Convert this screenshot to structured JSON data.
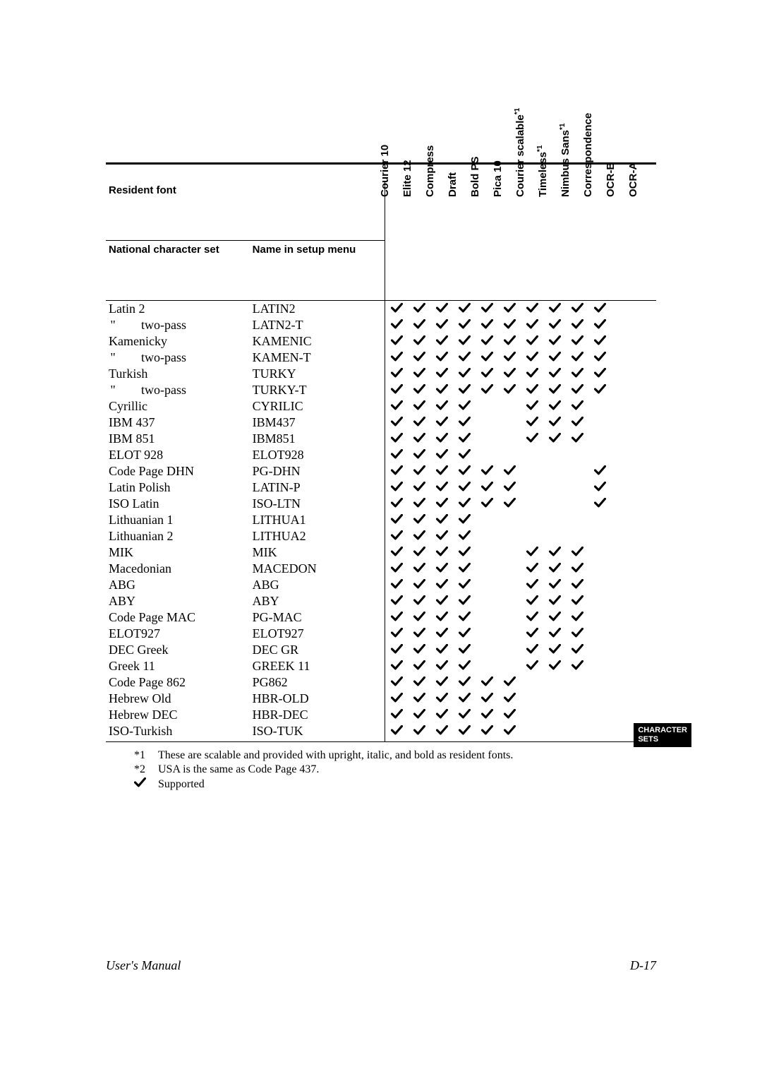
{
  "header": {
    "resident_font": "Resident font",
    "national_character_set": "National character set",
    "name_in_setup_menu": "Name in setup menu"
  },
  "columns": [
    {
      "label": "Courier 10",
      "note": ""
    },
    {
      "label": "Elite 12",
      "note": ""
    },
    {
      "label": "Compress",
      "note": ""
    },
    {
      "label": "Draft",
      "note": ""
    },
    {
      "label": "Bold PS",
      "note": ""
    },
    {
      "label": "Pica 10",
      "note": ""
    },
    {
      "label": "Courier scalable",
      "note": "*1"
    },
    {
      "label": "Timeless",
      "note": "*1"
    },
    {
      "label": "Nimbus Sans",
      "note": "*1"
    },
    {
      "label": "Correspondence",
      "note": ""
    },
    {
      "label": "OCR-B",
      "note": ""
    },
    {
      "label": "OCR-A",
      "note": ""
    }
  ],
  "rows": [
    {
      "charset": "Latin 2",
      "indent": false,
      "setup": "LATIN2",
      "marks": [
        1,
        1,
        1,
        1,
        1,
        1,
        1,
        1,
        1,
        1,
        0,
        0
      ]
    },
    {
      "charset": "two-pass",
      "indent": true,
      "setup": "LATN2-T",
      "marks": [
        1,
        1,
        1,
        1,
        1,
        1,
        1,
        1,
        1,
        1,
        0,
        0
      ]
    },
    {
      "charset": "Kamenicky",
      "indent": false,
      "setup": "KAMENIC",
      "marks": [
        1,
        1,
        1,
        1,
        1,
        1,
        1,
        1,
        1,
        1,
        0,
        0
      ]
    },
    {
      "charset": "two-pass",
      "indent": true,
      "setup": "KAMEN-T",
      "marks": [
        1,
        1,
        1,
        1,
        1,
        1,
        1,
        1,
        1,
        1,
        0,
        0
      ]
    },
    {
      "charset": "Turkish",
      "indent": false,
      "setup": "TURKY",
      "marks": [
        1,
        1,
        1,
        1,
        1,
        1,
        1,
        1,
        1,
        1,
        0,
        0
      ]
    },
    {
      "charset": "two-pass",
      "indent": true,
      "setup": "TURKY-T",
      "marks": [
        1,
        1,
        1,
        1,
        1,
        1,
        1,
        1,
        1,
        1,
        0,
        0
      ]
    },
    {
      "charset": "Cyrillic",
      "indent": false,
      "setup": "CYRILIC",
      "marks": [
        1,
        1,
        1,
        1,
        0,
        0,
        1,
        1,
        1,
        0,
        0,
        0
      ]
    },
    {
      "charset": "IBM 437",
      "indent": false,
      "setup": "IBM437",
      "marks": [
        1,
        1,
        1,
        1,
        0,
        0,
        1,
        1,
        1,
        0,
        0,
        0
      ]
    },
    {
      "charset": "IBM 851",
      "indent": false,
      "setup": "IBM851",
      "marks": [
        1,
        1,
        1,
        1,
        0,
        0,
        1,
        1,
        1,
        0,
        0,
        0
      ]
    },
    {
      "charset": "ELOT 928",
      "indent": false,
      "setup": "ELOT928",
      "marks": [
        1,
        1,
        1,
        1,
        0,
        0,
        0,
        0,
        0,
        0,
        0,
        0
      ]
    },
    {
      "charset": "Code Page DHN",
      "indent": false,
      "setup": "PG-DHN",
      "marks": [
        1,
        1,
        1,
        1,
        1,
        1,
        0,
        0,
        0,
        1,
        0,
        0
      ]
    },
    {
      "charset": "Latin Polish",
      "indent": false,
      "setup": "LATIN-P",
      "marks": [
        1,
        1,
        1,
        1,
        1,
        1,
        0,
        0,
        0,
        1,
        0,
        0
      ]
    },
    {
      "charset": "ISO Latin",
      "indent": false,
      "setup": "ISO-LTN",
      "marks": [
        1,
        1,
        1,
        1,
        1,
        1,
        0,
        0,
        0,
        1,
        0,
        0
      ]
    },
    {
      "charset": "Lithuanian 1",
      "indent": false,
      "setup": "LITHUA1",
      "marks": [
        1,
        1,
        1,
        1,
        0,
        0,
        0,
        0,
        0,
        0,
        0,
        0
      ]
    },
    {
      "charset": "Lithuanian 2",
      "indent": false,
      "setup": "LITHUA2",
      "marks": [
        1,
        1,
        1,
        1,
        0,
        0,
        0,
        0,
        0,
        0,
        0,
        0
      ]
    },
    {
      "charset": "MIK",
      "indent": false,
      "setup": "MIK",
      "marks": [
        1,
        1,
        1,
        1,
        0,
        0,
        1,
        1,
        1,
        0,
        0,
        0
      ]
    },
    {
      "charset": "Macedonian",
      "indent": false,
      "setup": "MACEDON",
      "marks": [
        1,
        1,
        1,
        1,
        0,
        0,
        1,
        1,
        1,
        0,
        0,
        0
      ]
    },
    {
      "charset": "ABG",
      "indent": false,
      "setup": "ABG",
      "marks": [
        1,
        1,
        1,
        1,
        0,
        0,
        1,
        1,
        1,
        0,
        0,
        0
      ]
    },
    {
      "charset": "ABY",
      "indent": false,
      "setup": "ABY",
      "marks": [
        1,
        1,
        1,
        1,
        0,
        0,
        1,
        1,
        1,
        0,
        0,
        0
      ]
    },
    {
      "charset": "Code Page MAC",
      "indent": false,
      "setup": "PG-MAC",
      "marks": [
        1,
        1,
        1,
        1,
        0,
        0,
        1,
        1,
        1,
        0,
        0,
        0
      ]
    },
    {
      "charset": "ELOT927",
      "indent": false,
      "setup": "ELOT927",
      "marks": [
        1,
        1,
        1,
        1,
        0,
        0,
        1,
        1,
        1,
        0,
        0,
        0
      ]
    },
    {
      "charset": "DEC Greek",
      "indent": false,
      "setup": "DEC GR",
      "marks": [
        1,
        1,
        1,
        1,
        0,
        0,
        1,
        1,
        1,
        0,
        0,
        0
      ]
    },
    {
      "charset": "Greek 11",
      "indent": false,
      "setup": "GREEK 11",
      "marks": [
        1,
        1,
        1,
        1,
        0,
        0,
        1,
        1,
        1,
        0,
        0,
        0
      ]
    },
    {
      "charset": "Code Page 862",
      "indent": false,
      "setup": "PG862",
      "marks": [
        1,
        1,
        1,
        1,
        1,
        1,
        0,
        0,
        0,
        0,
        0,
        0
      ]
    },
    {
      "charset": "Hebrew Old",
      "indent": false,
      "setup": "HBR-OLD",
      "marks": [
        1,
        1,
        1,
        1,
        1,
        1,
        0,
        0,
        0,
        0,
        0,
        0
      ]
    },
    {
      "charset": "Hebrew DEC",
      "indent": false,
      "setup": "HBR-DEC",
      "marks": [
        1,
        1,
        1,
        1,
        1,
        1,
        0,
        0,
        0,
        0,
        0,
        0
      ]
    },
    {
      "charset": "ISO-Turkish",
      "indent": false,
      "setup": "ISO-TUK",
      "marks": [
        1,
        1,
        1,
        1,
        1,
        1,
        0,
        0,
        0,
        0,
        0,
        0
      ]
    }
  ],
  "notes": {
    "n1_tag": "*1",
    "n1_text": "These are scalable and provided with upright, italic, and bold as resident fonts.",
    "n2_tag": "*2",
    "n2_text": "USA is the same as Code Page 437.",
    "supported": "Supported"
  },
  "tab": {
    "line1": "CHARACTER",
    "line2": "SETS"
  },
  "footer": {
    "left": "User's Manual",
    "right": "D-17"
  }
}
